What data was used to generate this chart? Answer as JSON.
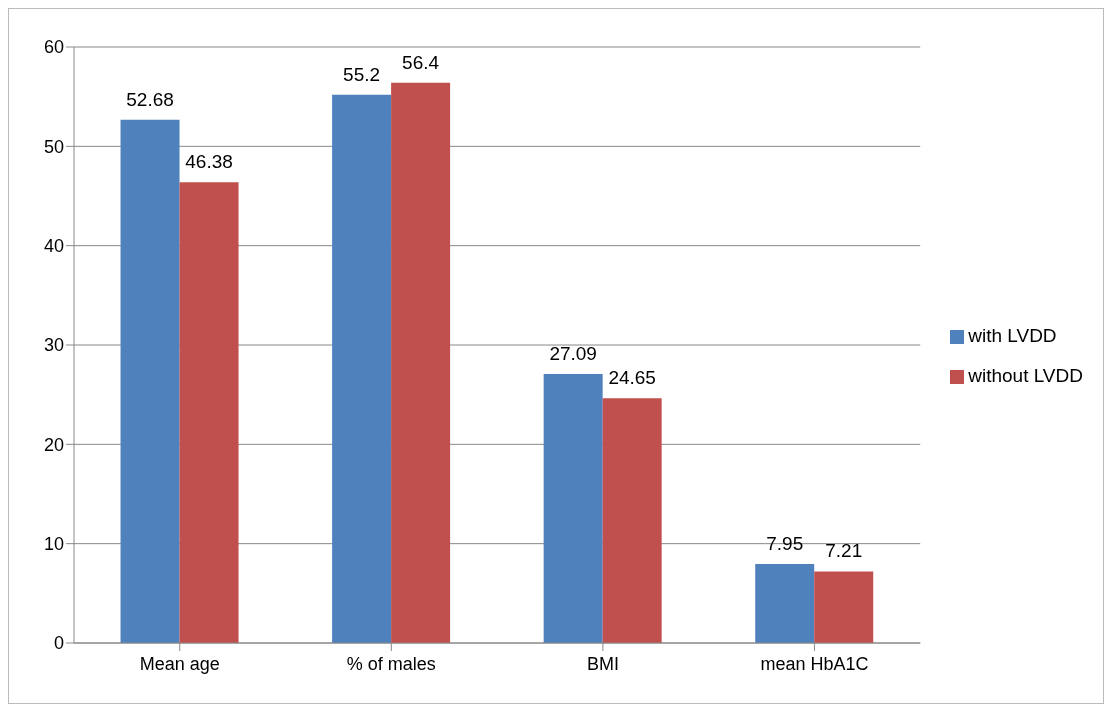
{
  "chart_data": {
    "type": "bar",
    "categories": [
      "Mean age",
      "% of males",
      "BMI",
      "mean HbA1C"
    ],
    "series": [
      {
        "name": "with LVDD",
        "color": "#4f81bd",
        "values": [
          52.68,
          55.2,
          27.09,
          7.95
        ]
      },
      {
        "name": "without LVDD",
        "color": "#c0504d",
        "values": [
          46.38,
          56.4,
          24.65,
          7.21
        ]
      }
    ],
    "ylim": [
      0,
      60
    ],
    "yticks": [
      0,
      10,
      20,
      30,
      40,
      50,
      60
    ],
    "grid": "y",
    "legend": "right",
    "data_labels": true
  }
}
